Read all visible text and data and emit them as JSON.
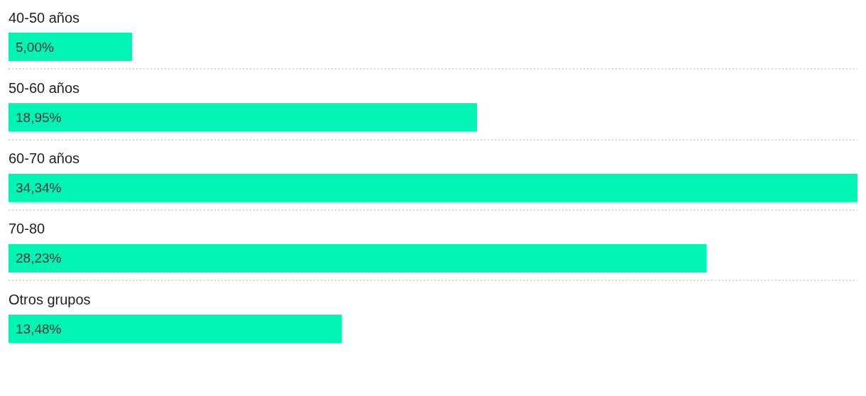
{
  "chart_data": {
    "type": "bar",
    "orientation": "horizontal",
    "categories": [
      "40-50 años",
      "50-60 años",
      "60-70 años",
      "70-80",
      "Otros grupos"
    ],
    "values": [
      5,
      18.95,
      34.34,
      28.23,
      13.48
    ],
    "value_labels": [
      "5,00%",
      "18,95%",
      "34,34%",
      "28,23%",
      "13,48%"
    ],
    "color": "#00f5b5",
    "grid": "y",
    "tick_labels": "y"
  }
}
